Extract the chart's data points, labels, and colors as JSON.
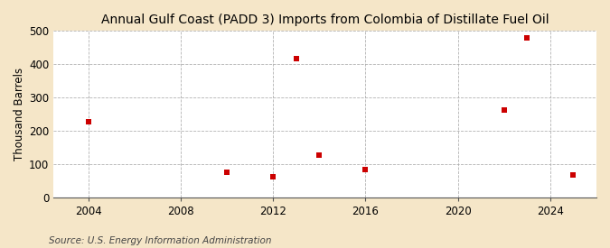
{
  "title": "Annual Gulf Coast (PADD 3) Imports from Colombia of Distillate Fuel Oil",
  "ylabel": "Thousand Barrels",
  "source": "Source: U.S. Energy Information Administration",
  "background_color": "#f5e6c8",
  "plot_bg_color": "#ffffff",
  "grid_color": "#aaaaaa",
  "marker_color": "#cc0000",
  "years": [
    2004,
    2010,
    2012,
    2013,
    2014,
    2016,
    2022,
    2023,
    2025
  ],
  "values": [
    228,
    75,
    62,
    418,
    128,
    82,
    263,
    478,
    68
  ],
  "xlim": [
    2002.5,
    2026
  ],
  "ylim": [
    0,
    500
  ],
  "xticks": [
    2004,
    2008,
    2012,
    2016,
    2020,
    2024
  ],
  "yticks": [
    0,
    100,
    200,
    300,
    400,
    500
  ],
  "title_fontsize": 10,
  "label_fontsize": 8.5,
  "tick_fontsize": 8.5,
  "source_fontsize": 7.5,
  "marker_size": 18
}
